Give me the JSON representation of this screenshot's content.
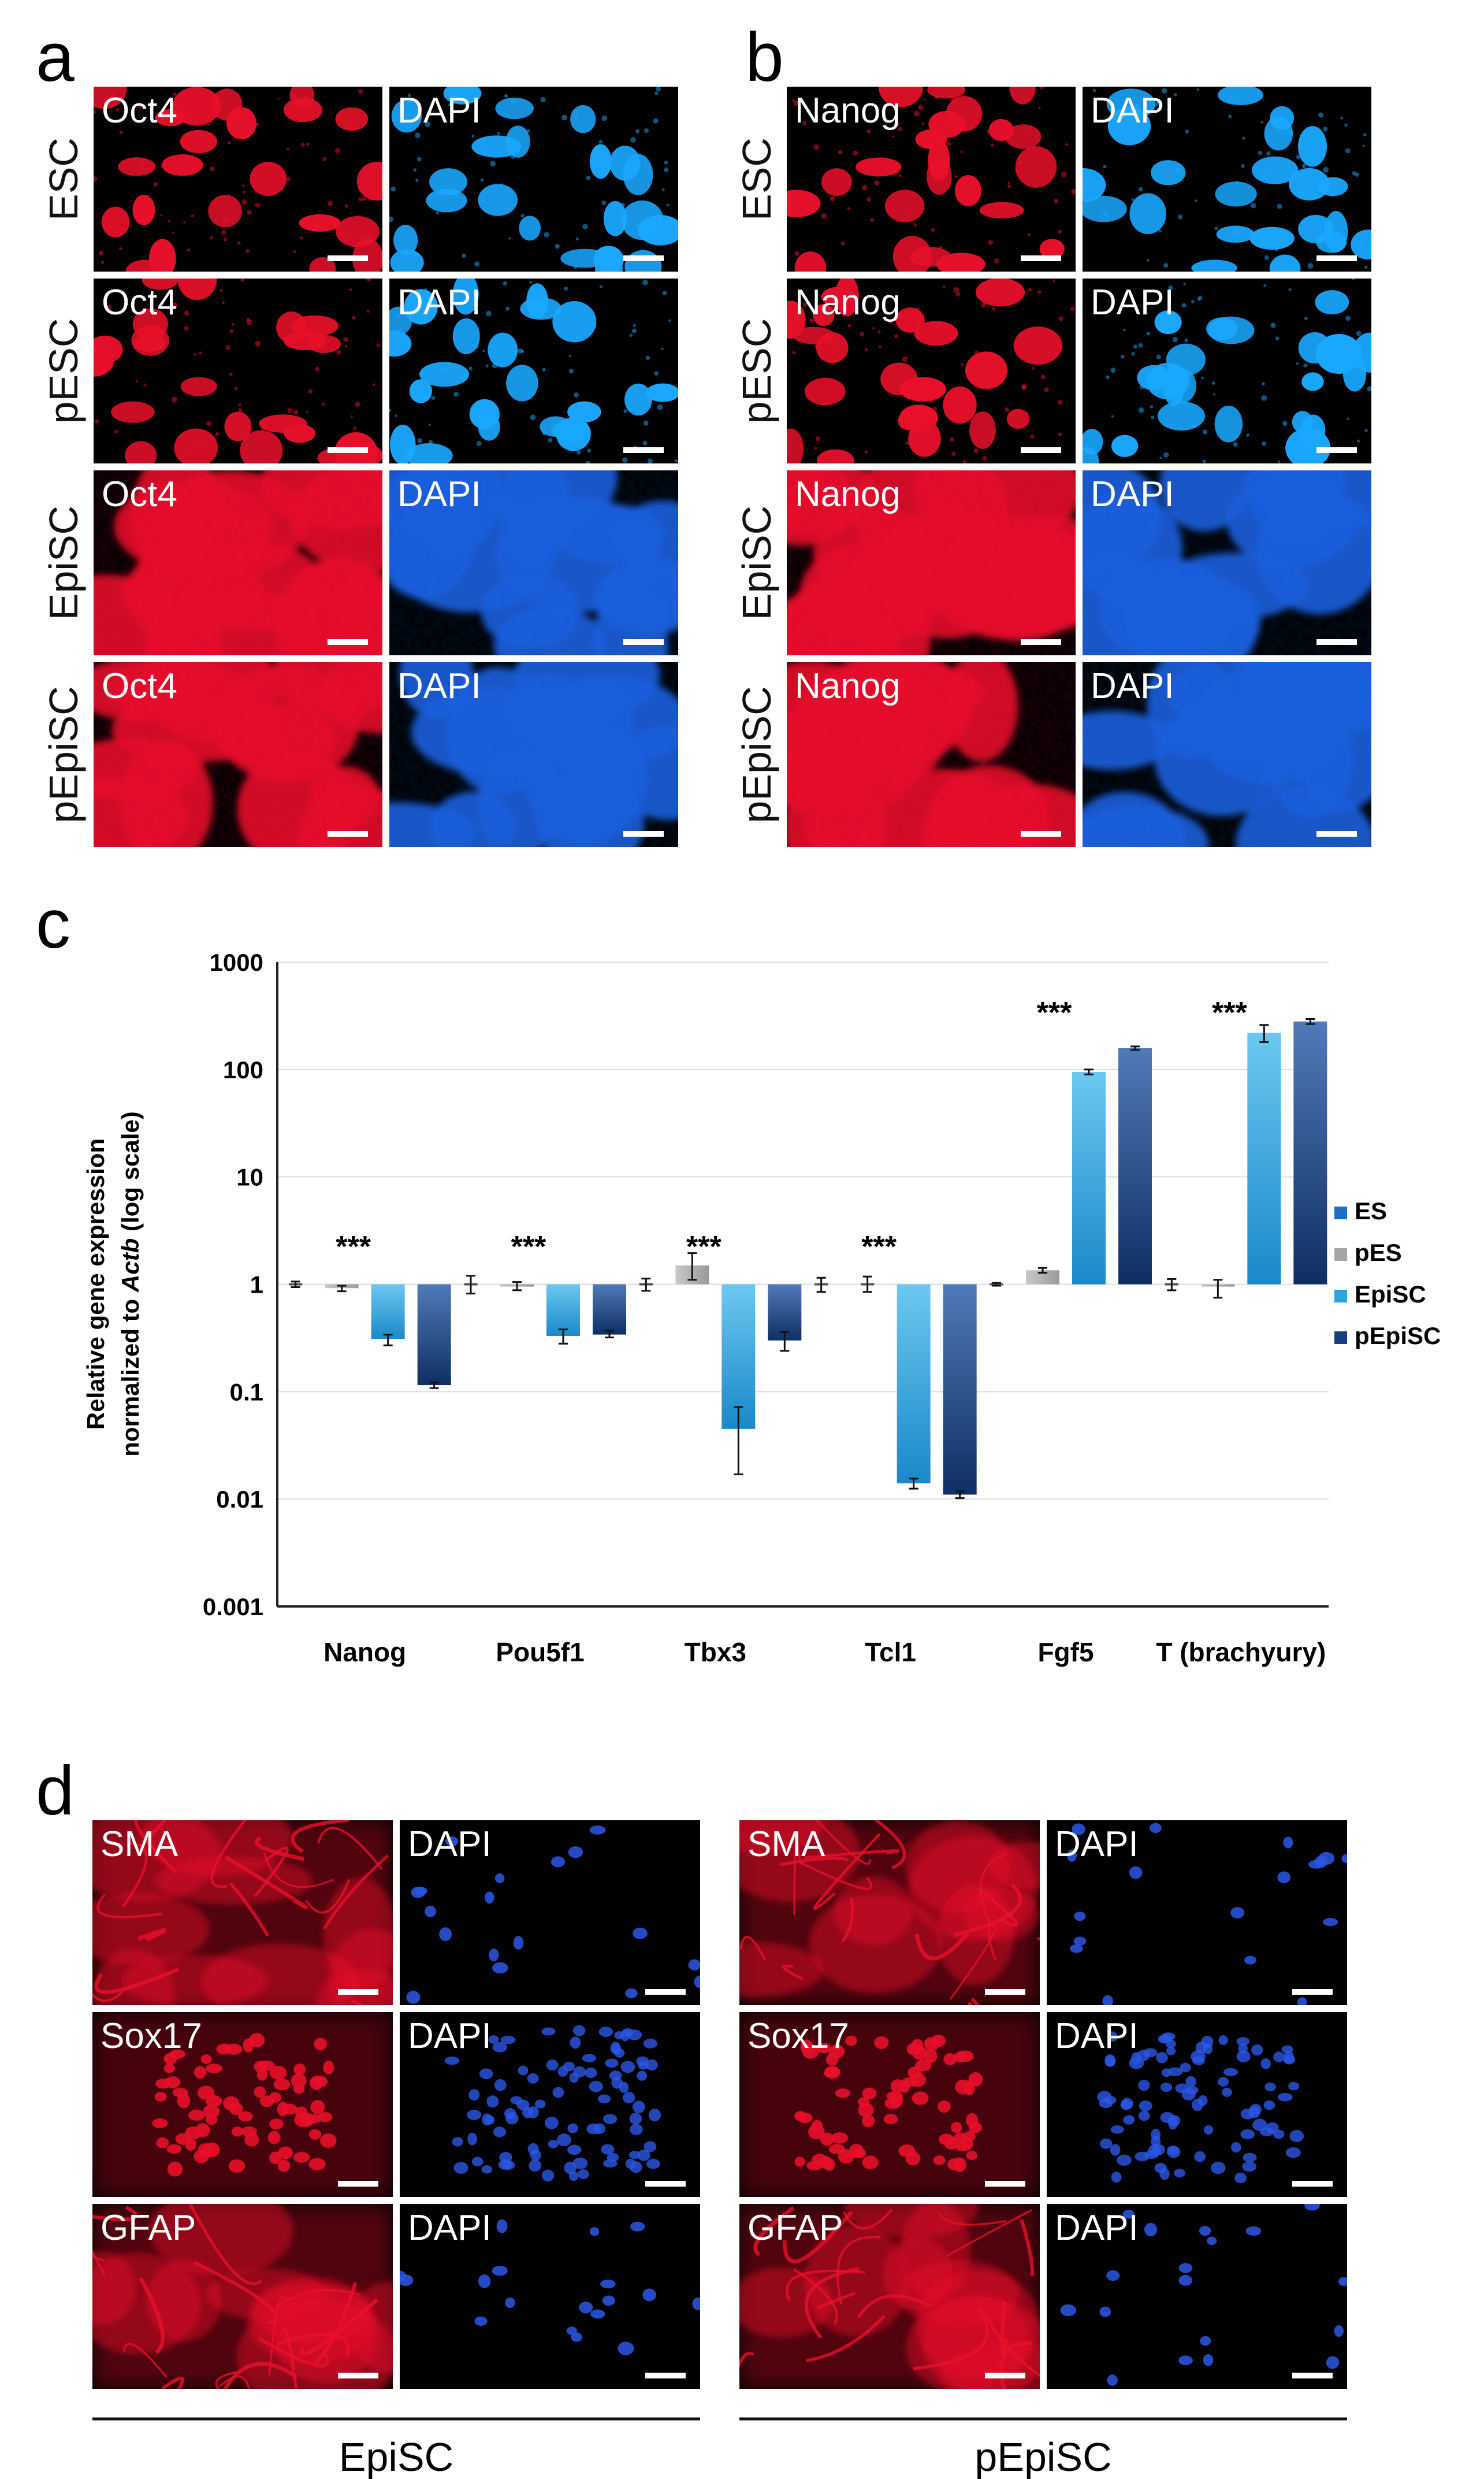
{
  "panels": {
    "a": {
      "letter": "a",
      "rows": [
        "ESC",
        "pESC",
        "EpiSC",
        "pEpiSC"
      ],
      "left_stain": "Oct4",
      "right_stain": "DAPI"
    },
    "b": {
      "letter": "b",
      "rows": [
        "ESC",
        "pESC",
        "EpiSC",
        "pEpiSC"
      ],
      "left_stain": "Nanog",
      "right_stain": "DAPI"
    },
    "d": {
      "letter": "d",
      "groups": [
        "EpiSC",
        "pEpiSC"
      ],
      "rows": [
        "SMA",
        "Sox17",
        "GFAP"
      ],
      "right_stain": "DAPI"
    }
  },
  "colors": {
    "ES": "#1f6fc6",
    "pES": "#a6a6a6",
    "EpiSC": "#2ea3dc",
    "pEpiSC": "#173f7c",
    "red_stain": "#e8102a",
    "blue_stain": "#1e5fe0",
    "cyan_stain": "#1aa8ff"
  },
  "chart_data": {
    "panel_letter": "c",
    "type": "bar",
    "log_scale": true,
    "ylabel_line1": "Relative gene expression",
    "ylabel_line2_prefix": "normalized to ",
    "ylabel_line2_italic": "Actb",
    "ylabel_line2_suffix": " (log scale)",
    "ylim": [
      0.001,
      1000
    ],
    "yticks": [
      {
        "value": 1000,
        "label": "1000"
      },
      {
        "value": 100,
        "label": "100"
      },
      {
        "value": 10,
        "label": "10"
      },
      {
        "value": 1,
        "label": "1"
      },
      {
        "value": 0.1,
        "label": "0.1"
      },
      {
        "value": 0.01,
        "label": "0.01"
      },
      {
        "value": 0.001,
        "label": "0.001"
      }
    ],
    "categories": [
      "Nanog",
      "Pou5f1",
      "Tbx3",
      "Tcl1",
      "Fgf5",
      "T (brachyury)"
    ],
    "significance": [
      "***",
      "***",
      "***",
      "***",
      "***",
      "***"
    ],
    "series": [
      {
        "name": "ES",
        "values": [
          1,
          1,
          1,
          1,
          1,
          1
        ],
        "err": [
          [
            0.94,
            1.06
          ],
          [
            0.82,
            1.2
          ],
          [
            0.87,
            1.13
          ],
          [
            0.85,
            1.15
          ],
          [
            0.97,
            1.03
          ],
          [
            0.88,
            1.12
          ]
        ]
      },
      {
        "name": "pES",
        "values": [
          0.92,
          0.95,
          1.5,
          1.0,
          1.35,
          0.95
        ],
        "err": [
          [
            0.86,
            0.97
          ],
          [
            0.88,
            1.05
          ],
          [
            1.1,
            1.95
          ],
          [
            0.85,
            1.18
          ],
          [
            1.28,
            1.42
          ],
          [
            0.75,
            1.1
          ]
        ]
      },
      {
        "name": "EpiSC",
        "values": [
          0.31,
          0.33,
          0.045,
          0.014,
          95,
          220
        ],
        "err": [
          [
            0.27,
            0.34
          ],
          [
            0.28,
            0.38
          ],
          [
            0.017,
            0.072
          ],
          [
            0.0125,
            0.0155
          ],
          [
            90,
            100
          ],
          [
            180,
            260
          ]
        ]
      },
      {
        "name": "pEpiSC",
        "values": [
          0.115,
          0.34,
          0.3,
          0.011,
          158,
          280
        ],
        "err": [
          [
            0.108,
            0.122
          ],
          [
            0.32,
            0.37
          ],
          [
            0.24,
            0.36
          ],
          [
            0.0102,
            0.0118
          ],
          [
            152,
            164
          ],
          [
            265,
            295
          ]
        ]
      }
    ],
    "legend": [
      "ES",
      "pES",
      "EpiSC",
      "pEpiSC"
    ],
    "legend_position": "right"
  }
}
